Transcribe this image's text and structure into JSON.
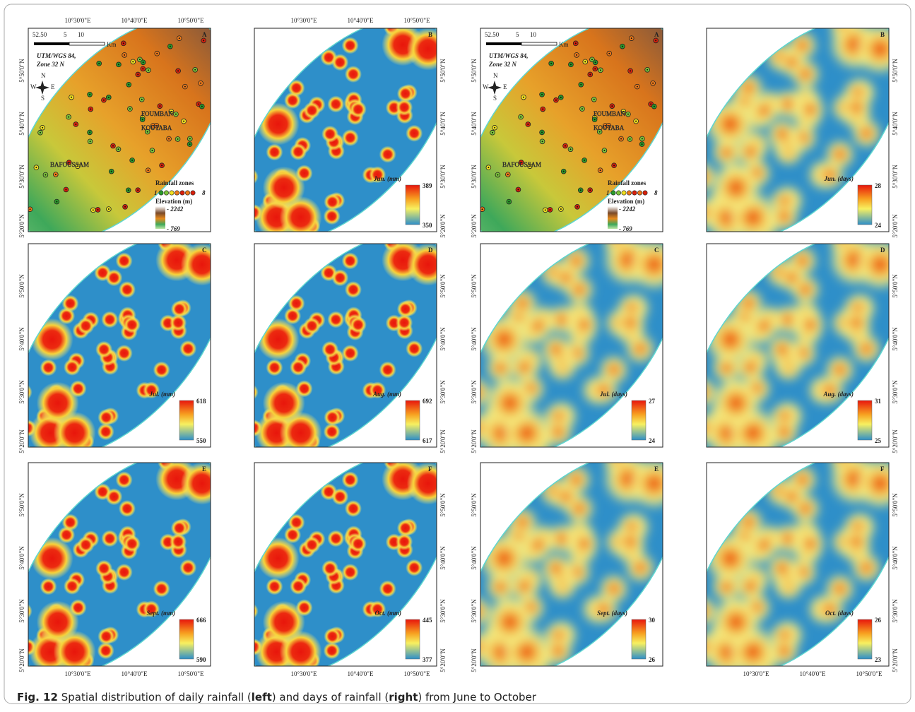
{
  "figure": {
    "x_labels": [
      "10°30'0\"E",
      "10°40'0\"E",
      "10°50'0\"E"
    ],
    "y_labels": [
      "5°50'0\"N",
      "5°40'0\"N",
      "5°30'0\"N",
      "5°20'0\"N"
    ],
    "panels": [
      {
        "letter": "A"
      },
      {
        "letter": "B",
        "legend": {
          "title": "Jun. (mm)",
          "max": 389,
          "min": 350
        }
      },
      {
        "letter": "A"
      },
      {
        "letter": "B",
        "legend": {
          "title": "Jun. (days)",
          "max": 28,
          "min": 24
        }
      },
      {
        "letter": "C",
        "legend": {
          "title": "Jul. (mm)",
          "max": 618,
          "min": 550
        }
      },
      {
        "letter": "D",
        "legend": {
          "title": "Aug. (mm)",
          "max": 692,
          "min": 617
        }
      },
      {
        "letter": "C",
        "legend": {
          "title": "Jul. (days)",
          "max": 27,
          "min": 24
        }
      },
      {
        "letter": "D",
        "legend": {
          "title": "Aug. (days)",
          "max": 31,
          "min": 25
        }
      },
      {
        "letter": "E",
        "legend": {
          "title": "Sept. (mm)",
          "max": 666,
          "min": 590
        }
      },
      {
        "letter": "F",
        "legend": {
          "title": "Oct. (mm)",
          "max": 445,
          "min": 377
        }
      },
      {
        "letter": "E",
        "legend": {
          "title": "Sept. (days)",
          "max": 30,
          "min": 26
        }
      },
      {
        "letter": "F",
        "legend": {
          "title": "Oct. (days)",
          "max": 26,
          "min": 23
        }
      }
    ],
    "map": {
      "scale": [
        "52.50",
        "5",
        "10"
      ],
      "scale_unit": "Km",
      "projection": [
        "UTM/WGS 84,",
        "Zone 32 N"
      ],
      "places": [
        "FOUMBAN",
        "KOUTABA",
        "BAFOUSSAM"
      ],
      "compass": [
        "N",
        "S",
        "E",
        "W"
      ],
      "zones_title": "Rainfall zones",
      "zones": [
        1,
        8
      ],
      "elevation_title": "Elevation (m)",
      "elevation": [
        "- 2242",
        "- 769"
      ]
    }
  },
  "caption": {
    "label": "Fig. 12",
    "parts": [
      "Spatial distribution of daily rainfall (",
      "left",
      ") and days of rainfall (",
      "right",
      ") from June to October"
    ]
  }
}
